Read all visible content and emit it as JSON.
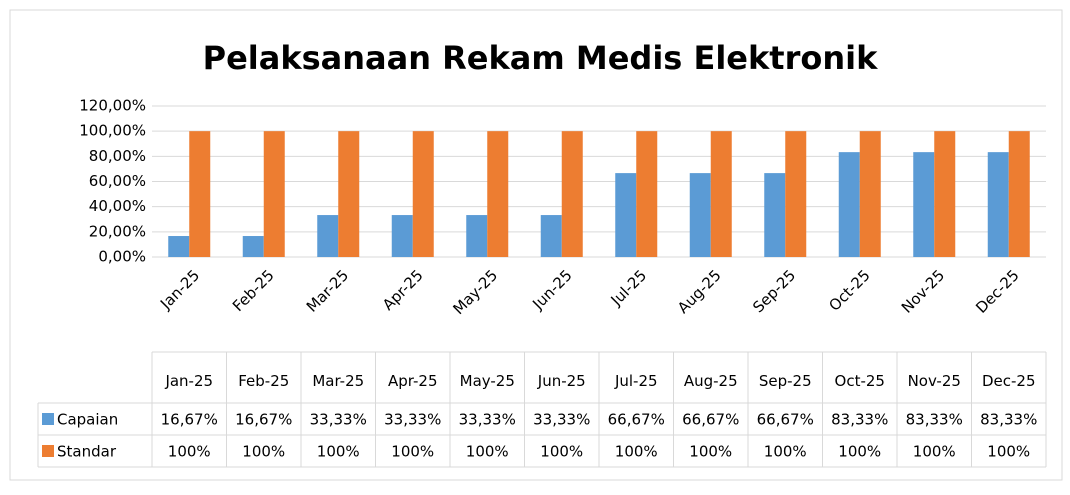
{
  "chart_data": {
    "type": "bar",
    "title": "Pelaksanaan Rekam Medis Elektronik",
    "categories": [
      "Jan-25",
      "Feb-25",
      "Mar-25",
      "Apr-25",
      "May-25",
      "Jun-25",
      "Jul-25",
      "Aug-25",
      "Sep-25",
      "Oct-25",
      "Nov-25",
      "Dec-25"
    ],
    "series": [
      {
        "name": "Capaian",
        "color": "#5b9bd5",
        "values": [
          16.67,
          16.67,
          33.33,
          33.33,
          33.33,
          33.33,
          66.67,
          66.67,
          66.67,
          83.33,
          83.33,
          83.33
        ],
        "value_labels": [
          "16,67%",
          "16,67%",
          "33,33%",
          "33,33%",
          "33,33%",
          "33,33%",
          "66,67%",
          "66,67%",
          "66,67%",
          "83,33%",
          "83,33%",
          "83,33%"
        ]
      },
      {
        "name": "Standar",
        "color": "#ed7d31",
        "values": [
          100,
          100,
          100,
          100,
          100,
          100,
          100,
          100,
          100,
          100,
          100,
          100
        ],
        "value_labels": [
          "100%",
          "100%",
          "100%",
          "100%",
          "100%",
          "100%",
          "100%",
          "100%",
          "100%",
          "100%",
          "100%",
          "100%"
        ]
      }
    ],
    "ylim": [
      0,
      120
    ],
    "yticks": [
      {
        "value": 0,
        "label": "0,00%"
      },
      {
        "value": 20,
        "label": "20,00%"
      },
      {
        "value": 40,
        "label": "40,00%"
      },
      {
        "value": 60,
        "label": "60,00%"
      },
      {
        "value": 80,
        "label": "80,00%"
      },
      {
        "value": 100,
        "label": "100,00%"
      },
      {
        "value": 120,
        "label": "120,00%"
      }
    ],
    "grid": true
  }
}
